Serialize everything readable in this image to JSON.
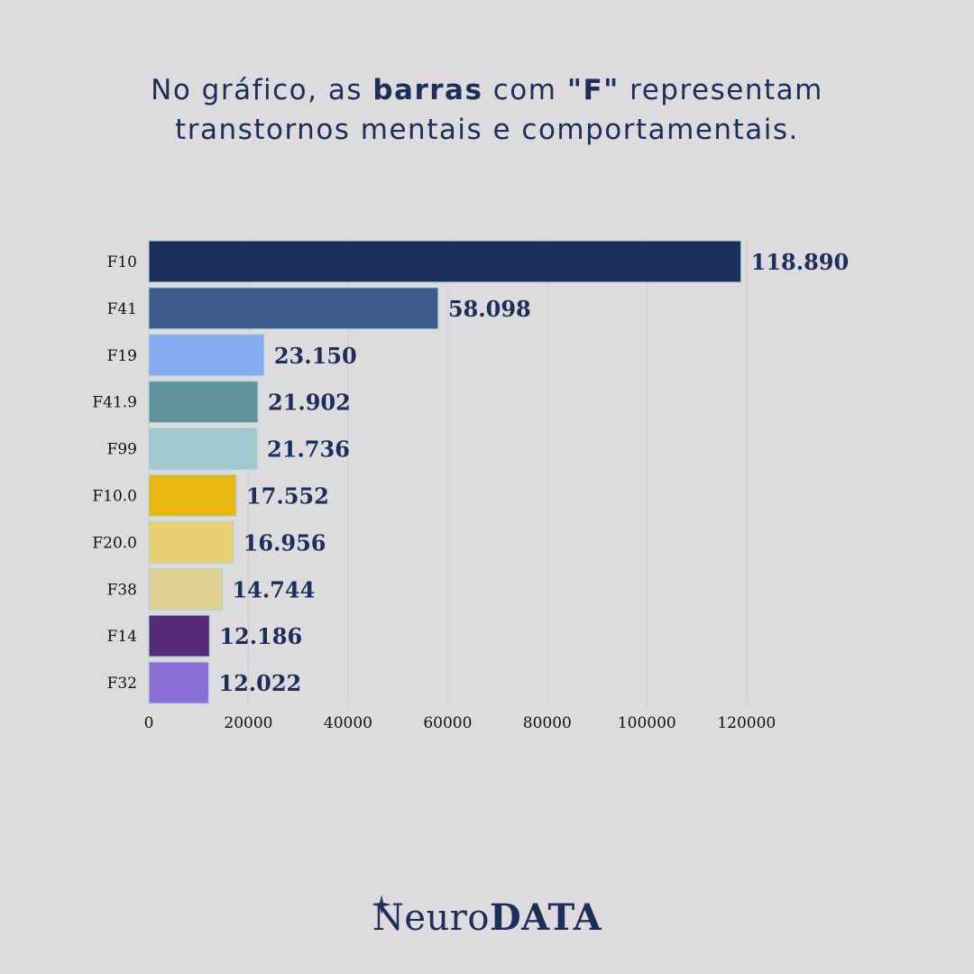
{
  "headline": {
    "part1": "No gráfico, as ",
    "bold1": "barras",
    "part2": " com ",
    "bold2": "\"F\"",
    "part3": " representam transtornos mentais e comportamentais."
  },
  "logo": {
    "text_a": "Neuro",
    "text_b": "DATA"
  },
  "colors": {
    "background": "#dddbdd",
    "text": "#1c2e5a"
  },
  "chart_data": {
    "type": "bar",
    "orientation": "horizontal",
    "categories": [
      "F10",
      "F41",
      "F19",
      "F41.9",
      "F99",
      "F10.0",
      "F20.0",
      "F38",
      "F14",
      "F32"
    ],
    "values": [
      118890,
      58098,
      23150,
      21902,
      21736,
      17552,
      16956,
      14744,
      12186,
      12022
    ],
    "value_labels": [
      "118.890",
      "58.098",
      "23.150",
      "21.902",
      "21.736",
      "17.552",
      "16.956",
      "14.744",
      "12.186",
      "12.022"
    ],
    "bar_colors": [
      "#1c2e5a",
      "#3e5a8a",
      "#88aaf2",
      "#62939c",
      "#a1c7cf",
      "#e9b710",
      "#e9cf71",
      "#e1d195",
      "#572a78",
      "#8b6fd6"
    ],
    "xlim": [
      0,
      130000
    ],
    "xticks": [
      0,
      20000,
      40000,
      60000,
      80000,
      100000,
      120000
    ],
    "xtick_labels": [
      "0",
      "20000",
      "40000",
      "60000",
      "80000",
      "100000",
      "120000"
    ],
    "grid": true,
    "xlabel": "",
    "ylabel": "",
    "title": ""
  }
}
